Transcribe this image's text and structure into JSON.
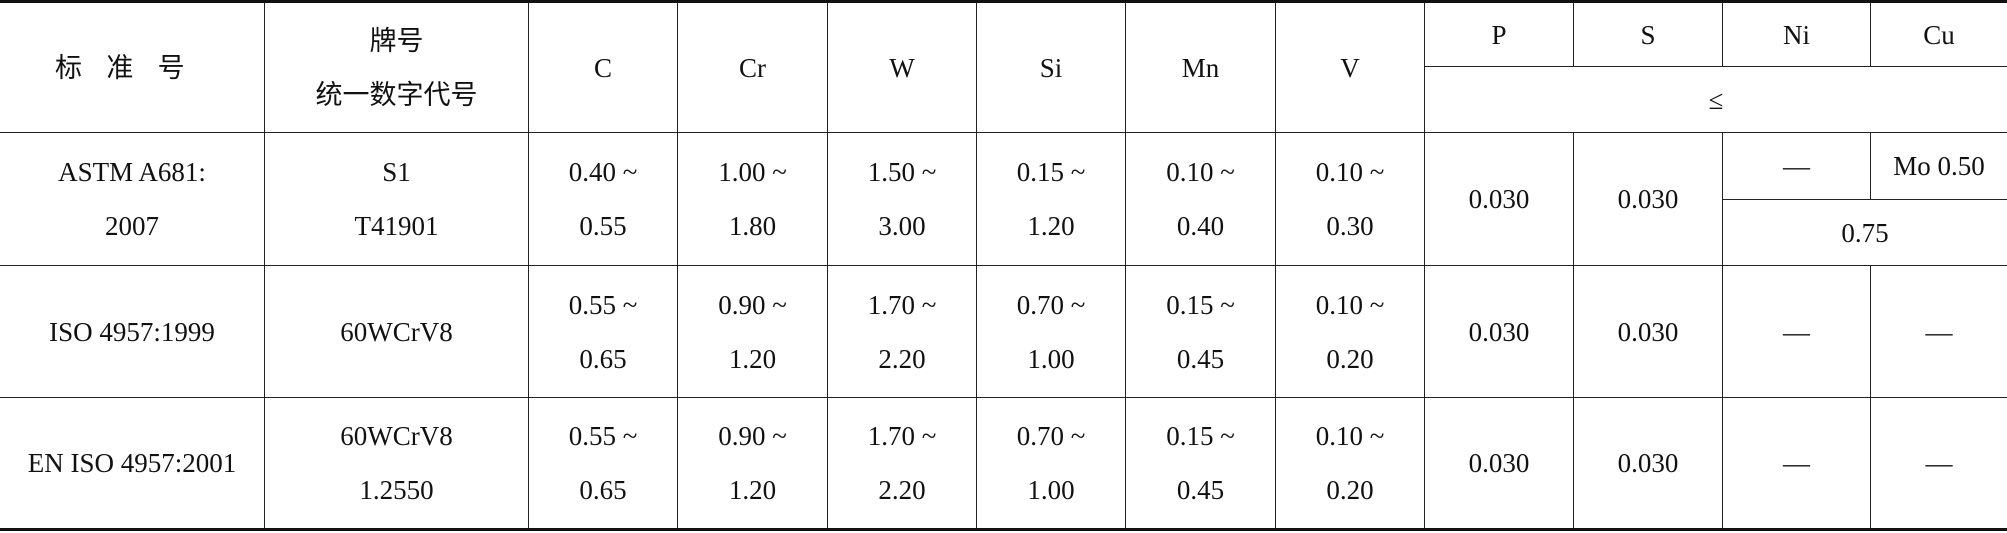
{
  "table": {
    "header": {
      "standard": "标准号",
      "grade": [
        "牌号",
        "统一数字代号"
      ],
      "elements": [
        "C",
        "Cr",
        "W",
        "Si",
        "Mn",
        "V",
        "P",
        "S",
        "Ni",
        "Cu"
      ],
      "max_note": "≤"
    },
    "rows": [
      {
        "standard": [
          "ASTM A681:",
          "2007"
        ],
        "grade": [
          "S1",
          "T41901"
        ],
        "ranges": [
          [
            "0.40 ~",
            "0.55"
          ],
          [
            "1.00 ~",
            "1.80"
          ],
          [
            "1.50 ~",
            "3.00"
          ],
          [
            "0.15 ~",
            "1.20"
          ],
          [
            "0.10 ~",
            "0.40"
          ],
          [
            "0.10 ~",
            "0.30"
          ]
        ],
        "P": "0.030",
        "S": "0.030",
        "Ni": "—",
        "Cu": "Mo 0.50",
        "Ni_Cu": "0.75"
      },
      {
        "standard": [
          "ISO 4957:1999"
        ],
        "grade": [
          "60WCrV8"
        ],
        "ranges": [
          [
            "0.55 ~",
            "0.65"
          ],
          [
            "0.90 ~",
            "1.20"
          ],
          [
            "1.70 ~",
            "2.20"
          ],
          [
            "0.70 ~",
            "1.00"
          ],
          [
            "0.15 ~",
            "0.45"
          ],
          [
            "0.10 ~",
            "0.20"
          ]
        ],
        "P": "0.030",
        "S": "0.030",
        "Ni": "—",
        "Cu": "—"
      },
      {
        "standard": [
          "EN ISO 4957:2001"
        ],
        "grade": [
          "60WCrV8",
          "1.2550"
        ],
        "ranges": [
          [
            "0.55 ~",
            "0.65"
          ],
          [
            "0.90 ~",
            "1.20"
          ],
          [
            "1.70 ~",
            "2.20"
          ],
          [
            "0.70 ~",
            "1.00"
          ],
          [
            "0.15 ~",
            "0.45"
          ],
          [
            "0.10 ~",
            "0.20"
          ]
        ],
        "P": "0.030",
        "S": "0.030",
        "Ni": "—",
        "Cu": "—"
      }
    ]
  }
}
